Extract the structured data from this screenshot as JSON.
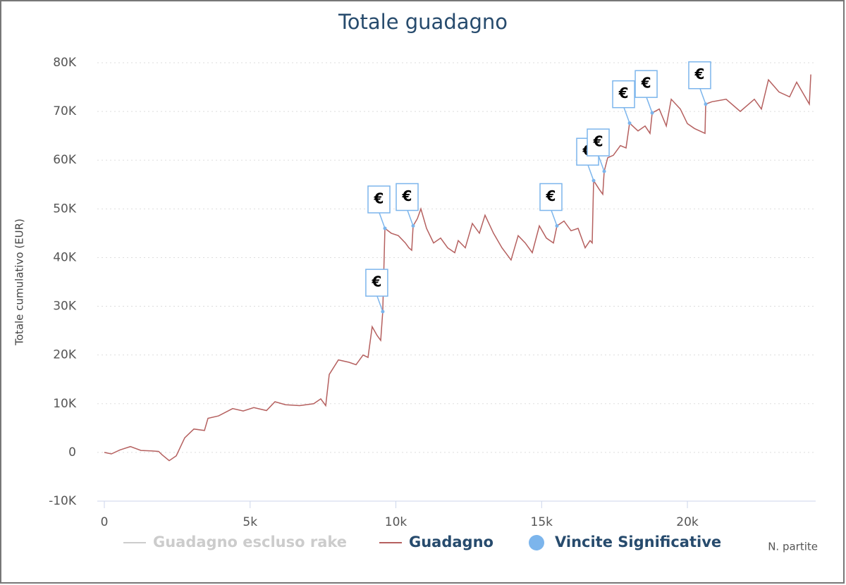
{
  "chart_data": {
    "type": "line",
    "title": "Totale guadagno",
    "y_label": "Totale cumulativo (EUR)",
    "x_label": "N. partite",
    "xlim": [
      0,
      24400
    ],
    "xticks": [
      0,
      {
        "value": 5000,
        "label": "5k"
      },
      {
        "value": 10000,
        "label": "10k"
      },
      {
        "value": 15000,
        "label": "15k"
      },
      {
        "value": 20000,
        "label": "20k"
      }
    ],
    "ylim": [
      -10000,
      80000
    ],
    "yticks": [
      {
        "value": -10000,
        "label": "-10K"
      },
      0,
      {
        "value": 10000,
        "label": "10K"
      },
      {
        "value": 20000,
        "label": "20K"
      },
      {
        "value": 30000,
        "label": "30K"
      },
      {
        "value": 40000,
        "label": "40K"
      },
      {
        "value": 50000,
        "label": "50K"
      },
      {
        "value": 60000,
        "label": "60K"
      },
      {
        "value": 70000,
        "label": "70K"
      },
      {
        "value": 80000,
        "label": "80K"
      }
    ],
    "grid": true,
    "flag_label": "€",
    "series": [
      {
        "name": "Guadagno escluso rake",
        "color": "#cccccc",
        "visible": false
      },
      {
        "name": "Guadagno",
        "color": "#b5605f",
        "x": [
          0,
          242,
          532,
          895,
          1258,
          1620,
          1862,
          1983,
          2225,
          2466,
          2757,
          3071,
          3434,
          3555,
          3918,
          4401,
          4764,
          5127,
          5562,
          5852,
          6215,
          6699,
          7182,
          7424,
          7593,
          7714,
          8028,
          8391,
          8633,
          8874,
          9044,
          9188,
          9357,
          9479,
          9550,
          9625,
          9843,
          10085,
          10326,
          10447,
          10544,
          10592,
          10737,
          10858,
          11051,
          11293,
          11535,
          11776,
          12018,
          12139,
          12381,
          12623,
          12864,
          13058,
          13348,
          13638,
          13952,
          14196,
          14438,
          14679,
          14921,
          15163,
          15404,
          15525,
          15767,
          16009,
          16251,
          16493,
          16662,
          16735,
          16783,
          16977,
          17098,
          17146,
          17267,
          17460,
          17702,
          17896,
          18017,
          18307,
          18549,
          18718,
          18791,
          19033,
          19275,
          19444,
          19758,
          19999,
          20240,
          20603,
          20627,
          20845,
          21328,
          21812,
          22297,
          22539,
          22780,
          23143,
          23505,
          23747,
          23989,
          24183,
          24232
        ],
        "values": [
          0,
          -300,
          500,
          1200,
          400,
          300,
          200,
          -500,
          -1700,
          -700,
          3000,
          4800,
          4500,
          7000,
          7500,
          9000,
          8500,
          9200,
          8600,
          10400,
          9800,
          9600,
          10000,
          11000,
          9600,
          16000,
          19000,
          18500,
          18000,
          20000,
          19500,
          25800,
          24000,
          23000,
          28900,
          46000,
          45000,
          44500,
          43000,
          42000,
          41500,
          46500,
          48000,
          50000,
          46000,
          43000,
          44000,
          42000,
          41000,
          43500,
          42000,
          47000,
          45000,
          48700,
          45000,
          42000,
          39500,
          44500,
          43000,
          41000,
          46500,
          44000,
          43000,
          46500,
          47500,
          45500,
          46000,
          42000,
          43500,
          43000,
          55800,
          54000,
          53000,
          57700,
          60500,
          61000,
          63000,
          62500,
          67600,
          66000,
          67000,
          65500,
          69700,
          70500,
          67000,
          72500,
          70500,
          67500,
          66500,
          65500,
          71500,
          72000,
          72500,
          70000,
          72500,
          70500,
          76500,
          74000,
          73000,
          76000,
          73500,
          71500,
          77600
        ]
      },
      {
        "name": "Vincite Significative",
        "color": "#7cb5ec",
        "x": [
          9550,
          9625,
          10592,
          15525,
          16783,
          17146,
          18017,
          18791,
          20627
        ],
        "values": [
          28900,
          46000,
          46500,
          46500,
          55800,
          57700,
          67600,
          69700,
          71500
        ]
      }
    ]
  }
}
